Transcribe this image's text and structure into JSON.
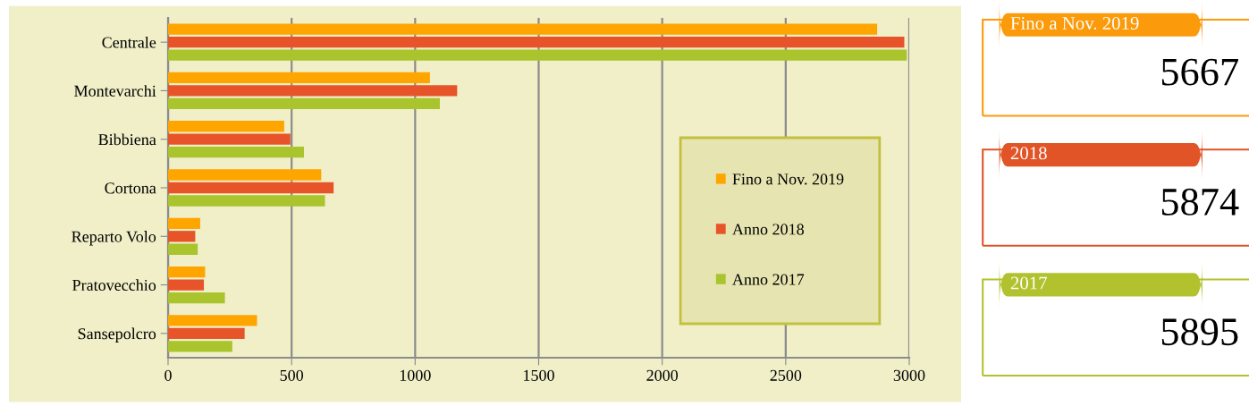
{
  "chart_data": [
    {
      "type": "bar",
      "orientation": "horizontal",
      "categories": [
        "Centrale",
        "Montevarchi",
        "Bibbiena",
        "Cortona",
        "Reparto Volo",
        "Pratovecchio",
        "Sansepolcro"
      ],
      "series": [
        {
          "name": "Fino a Nov. 2019",
          "color": "#ffa500",
          "values": [
            2870,
            1060,
            470,
            620,
            130,
            150,
            360
          ]
        },
        {
          "name": "Anno 2018",
          "color": "#e8542a",
          "values": [
            2980,
            1170,
            495,
            670,
            110,
            145,
            310
          ]
        },
        {
          "name": "Anno 2017",
          "color": "#a9c42c",
          "values": [
            2990,
            1100,
            550,
            635,
            120,
            230,
            260
          ]
        }
      ],
      "xlim": [
        0,
        3000
      ],
      "xticks": [
        0,
        500,
        1000,
        1500,
        2000,
        2500,
        3000
      ],
      "grid": "x",
      "legend": "bottom right"
    },
    {
      "type": "other",
      "categories": [
        "Fino a Nov. 2019",
        "2018",
        "2017"
      ],
      "values": [
        5667,
        5874,
        5895
      ],
      "colors": [
        "#fb9a0a",
        "#e05427",
        "#b1c22e"
      ],
      "data_labels": true
    }
  ]
}
